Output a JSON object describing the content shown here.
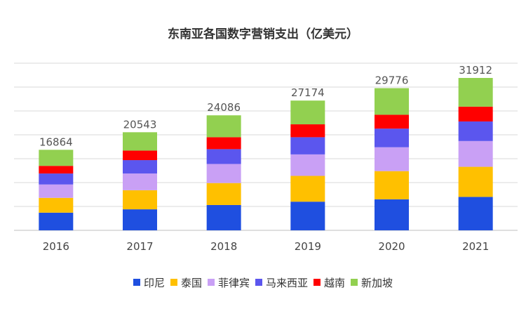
{
  "chart_data": {
    "type": "bar",
    "stacked": true,
    "title": "东南亚各国数字营销支出（亿美元）",
    "categories": [
      "2016",
      "2017",
      "2018",
      "2019",
      "2020",
      "2021"
    ],
    "totals": [
      "16864",
      "20543",
      "24086",
      "27174",
      "29776",
      "31912"
    ],
    "ylim": [
      0,
      35000
    ],
    "grid": true,
    "legend_position": "bottom",
    "series": [
      {
        "name": "印尼",
        "color": "#1f4fe0",
        "values": [
          3700,
          4400,
          5300,
          6000,
          6500,
          7000
        ]
      },
      {
        "name": "泰国",
        "color": "#ffc000",
        "values": [
          3100,
          4000,
          4600,
          5400,
          5900,
          6300
        ]
      },
      {
        "name": "菲律宾",
        "color": "#c9a0f5",
        "values": [
          2800,
          3500,
          4000,
          4500,
          5000,
          5400
        ]
      },
      {
        "name": "马来西亚",
        "color": "#5b56ee",
        "values": [
          2300,
          2800,
          3100,
          3600,
          3900,
          4100
        ]
      },
      {
        "name": "越南",
        "color": "#ff0000",
        "values": [
          1600,
          2000,
          2500,
          2700,
          2900,
          3100
        ]
      },
      {
        "name": "新加坡",
        "color": "#92d050",
        "values": [
          3364,
          3843,
          4586,
          4974,
          5576,
          6012
        ]
      }
    ]
  }
}
